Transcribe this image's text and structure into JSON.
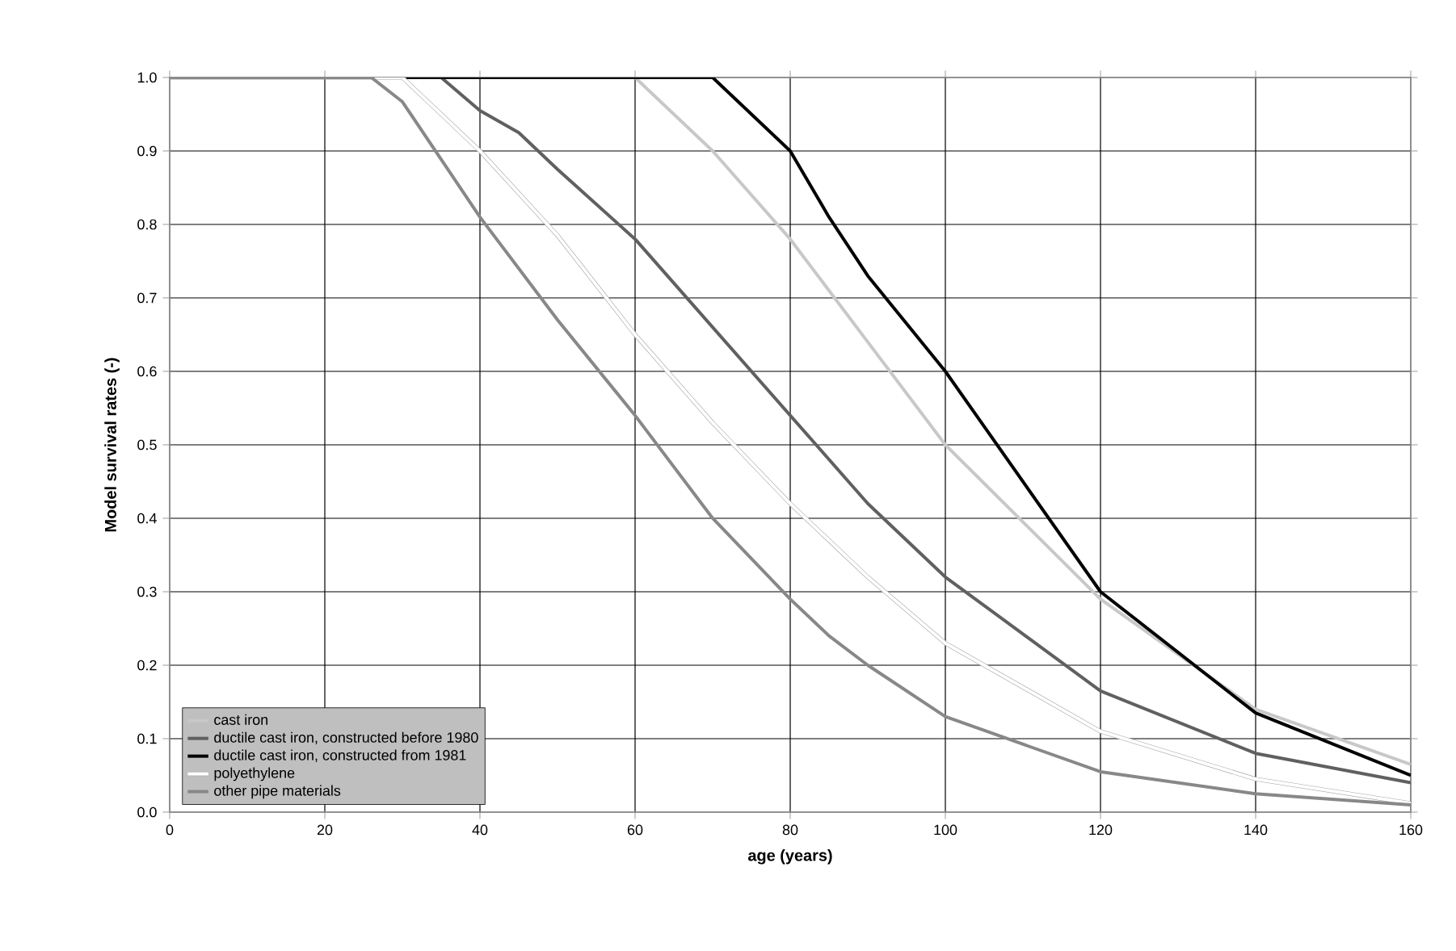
{
  "chart_data": {
    "type": "line",
    "xlabel": "age (years)",
    "ylabel": "Model survival rates (-)",
    "xlim": [
      0,
      160
    ],
    "xticks": [
      0,
      20,
      40,
      60,
      80,
      100,
      120,
      140,
      160
    ],
    "ylim": [
      0,
      1
    ],
    "yticks": [
      {
        "value": 0,
        "label": "0.0"
      },
      {
        "value": 0.1,
        "label": "0.1"
      },
      {
        "value": 0.2,
        "label": "0.2"
      },
      {
        "value": 0.3,
        "label": "0.3"
      },
      {
        "value": 0.4,
        "label": "0.4"
      },
      {
        "value": 0.5,
        "label": "0.5"
      },
      {
        "value": 0.6,
        "label": "0.6"
      },
      {
        "value": 0.7,
        "label": "0.7"
      },
      {
        "value": 0.8,
        "label": "0.8"
      },
      {
        "value": 0.9,
        "label": "0.9"
      },
      {
        "value": 1,
        "label": "1.0"
      }
    ],
    "grid": true,
    "legend": "bottom left",
    "marker": "none",
    "line_style": "solid",
    "series": [
      {
        "name": "cast iron",
        "color": "#c8c8c8",
        "x": [
          0,
          60,
          70,
          80,
          90,
          100,
          120,
          140,
          160
        ],
        "values": [
          1,
          1,
          0.9,
          0.78,
          0.64,
          0.5,
          0.29,
          0.14,
          0.065
        ]
      },
      {
        "name": "ductile cast iron, constructed before 1980",
        "color": "#606060",
        "x": [
          0,
          35,
          40,
          45,
          50,
          60,
          70,
          80,
          90,
          100,
          120,
          140,
          160
        ],
        "values": [
          1,
          1,
          0.955,
          0.925,
          0.875,
          0.78,
          0.66,
          0.54,
          0.42,
          0.32,
          0.165,
          0.08,
          0.04
        ]
      },
      {
        "name": "ductile cast iron, constructed from 1981",
        "color": "#000000",
        "x": [
          0,
          70,
          75,
          80,
          85,
          90,
          100,
          120,
          140,
          160
        ],
        "values": [
          1,
          1,
          0.95,
          0.9,
          0.81,
          0.73,
          0.6,
          0.3,
          0.135,
          0.05
        ]
      },
      {
        "name": "polyethylene",
        "color": "#ffffff",
        "x": [
          0,
          30,
          40,
          50,
          60,
          70,
          80,
          90,
          100,
          120,
          140,
          160
        ],
        "values": [
          1,
          1,
          0.9,
          0.785,
          0.65,
          0.53,
          0.42,
          0.32,
          0.23,
          0.11,
          0.045,
          0.012
        ]
      },
      {
        "name": "other pipe materials",
        "color": "#888888",
        "x": [
          0,
          26,
          30,
          40,
          50,
          60,
          70,
          80,
          85,
          90,
          100,
          120,
          140,
          160
        ],
        "values": [
          1,
          1,
          0.967,
          0.81,
          0.67,
          0.54,
          0.4,
          0.29,
          0.24,
          0.2,
          0.13,
          0.055,
          0.025,
          0.01
        ]
      }
    ]
  }
}
